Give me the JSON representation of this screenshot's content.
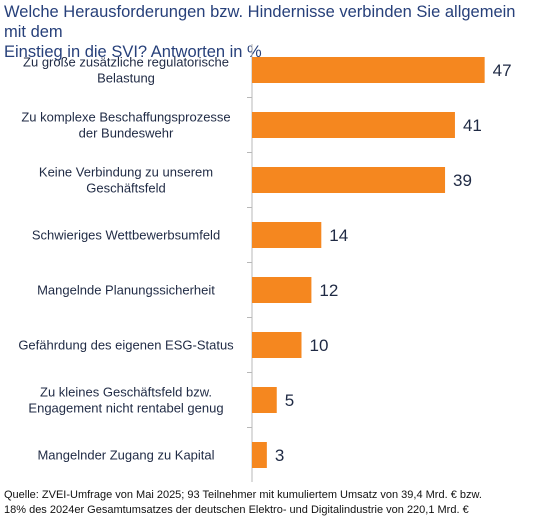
{
  "chart_data": {
    "type": "bar",
    "orientation": "horizontal",
    "title_lines": [
      "Welche Herausforderungen bzw. Hindernisse verbinden Sie allgemein mit dem",
      "Einstieg in die SVI? Antworten in %"
    ],
    "categories": [
      [
        "Zu große zusätzliche regulatorische",
        "Belastung"
      ],
      [
        "Zu komplexe Beschaffungsprozesse",
        "der Bundeswehr"
      ],
      [
        "Keine Verbindung zu unserem",
        "Geschäftsfeld"
      ],
      [
        "Schwieriges Wettbewerbsumfeld"
      ],
      [
        "Mangelnde Planungssicherheit"
      ],
      [
        "Gefährdung des eigenen ESG-Status"
      ],
      [
        "Zu kleines Geschäftsfeld bzw.",
        "Engagement nicht rentabel genug"
      ],
      [
        "Mangelnder Zugang zu Kapital"
      ]
    ],
    "values": [
      47,
      41,
      39,
      14,
      12,
      10,
      5,
      3
    ],
    "xlim": [
      0,
      50
    ],
    "grid": false,
    "legend": "none",
    "colors": {
      "bar": "#F5871F",
      "axis": "#b8b8b8",
      "title": "#27407a"
    }
  },
  "source_lines": [
    "Quelle: ZVEI-Umfrage von Mai 2025; 93 Teilnehmer mit kumuliertem Umsatz von 39,4 Mrd. € bzw.",
    "18% des 2024er Gesamtumsatzes der deutschen Elektro- und Digitalindustrie von 220,1 Mrd. €"
  ]
}
